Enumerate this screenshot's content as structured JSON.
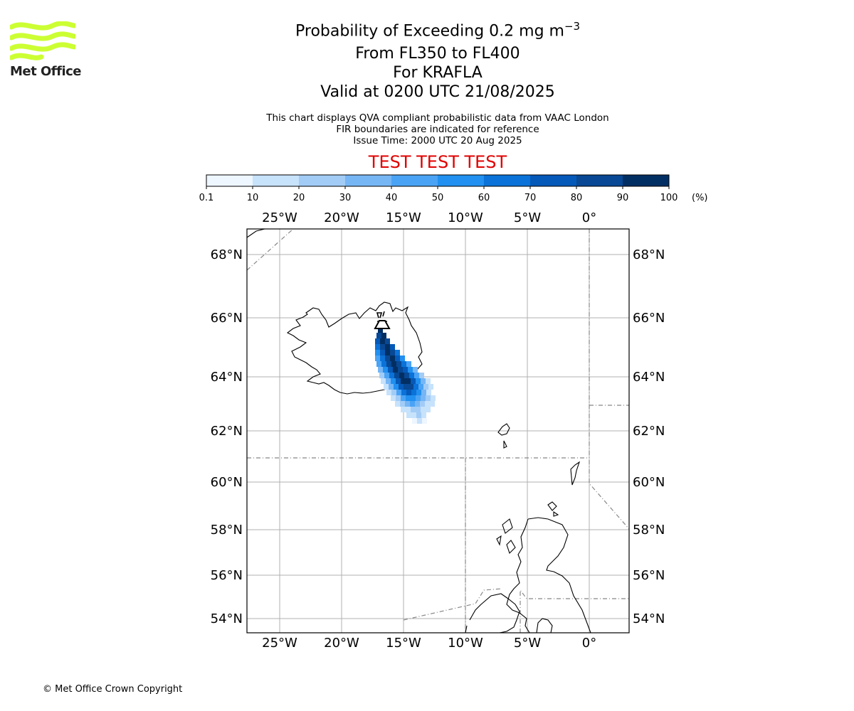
{
  "header": {
    "title_main": "Probability of Exceeding 0.2 mg m",
    "title_exp": "−3",
    "level_line": "From FL350 to FL400",
    "volcano_line": "For KRAFLA",
    "valid_line": "Valid at 0200 UTC 21/08/2025",
    "info_line1": "This chart displays QVA compliant probabilistic data from VAAC London",
    "info_line2": "FIR boundaries are indicated for reference",
    "issue_line": "Issue Time: 2000 UTC 20 Aug 2025",
    "test_banner": "TEST TEST TEST"
  },
  "logo": {
    "wordmark": "Met Office",
    "color": "#ccff33"
  },
  "colorbar": {
    "ticks": [
      "0.1",
      "10",
      "20",
      "30",
      "40",
      "50",
      "60",
      "70",
      "80",
      "90",
      "100"
    ],
    "unit": "(%)",
    "colors": [
      "#eef6ff",
      "#c7e2fb",
      "#a2ccf6",
      "#76b6f5",
      "#4ba3f5",
      "#2190f0",
      "#0a72d8",
      "#0559b8",
      "#084894",
      "#022f63"
    ]
  },
  "map": {
    "lon_labels": [
      "25°W",
      "20°W",
      "15°W",
      "10°W",
      "5°W",
      "0°"
    ],
    "lat_labels": [
      "68°N",
      "66°N",
      "64°N",
      "62°N",
      "60°N",
      "58°N",
      "56°N",
      "54°N"
    ],
    "volcano_marker": "volcano-icon"
  },
  "footer": {
    "copyright": "© Met Office Crown Copyright"
  }
}
